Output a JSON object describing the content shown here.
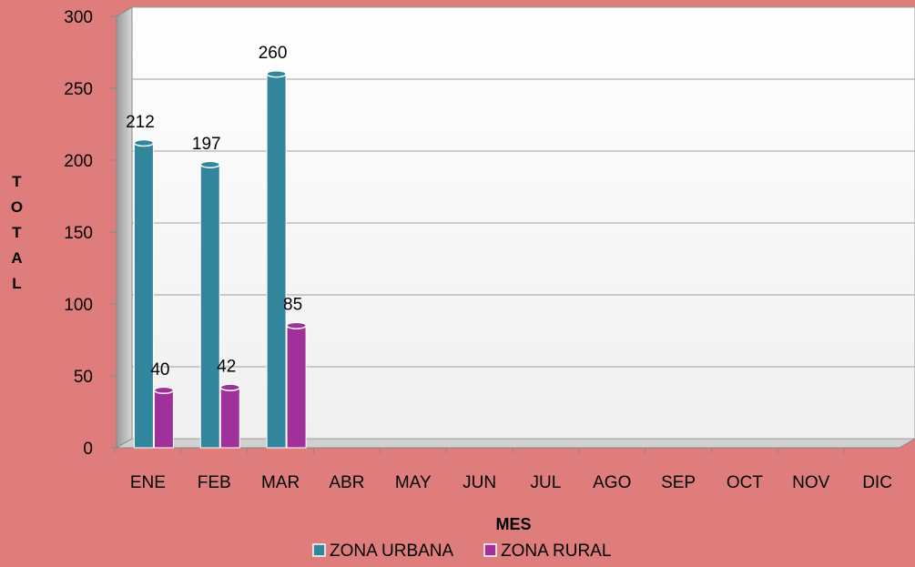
{
  "chart_data": {
    "type": "bar",
    "categories": [
      "ENE",
      "FEB",
      "MAR",
      "ABR",
      "MAY",
      "JUN",
      "JUL",
      "AGO",
      "SEP",
      "OCT",
      "NOV",
      "DIC"
    ],
    "series": [
      {
        "name": "ZONA URBANA",
        "color": "#31859c",
        "values": [
          212,
          197,
          260,
          null,
          null,
          null,
          null,
          null,
          null,
          null,
          null,
          null
        ]
      },
      {
        "name": "ZONA RURAL",
        "color": "#a0309a",
        "values": [
          40,
          42,
          85,
          null,
          null,
          null,
          null,
          null,
          null,
          null,
          null,
          null
        ]
      }
    ],
    "xlabel": "MES",
    "ylabel": "TOTAL",
    "ylim": [
      0,
      300
    ],
    "yticks": [
      0,
      50,
      100,
      150,
      200,
      250,
      300
    ],
    "grid": true,
    "legend": "bottom"
  }
}
